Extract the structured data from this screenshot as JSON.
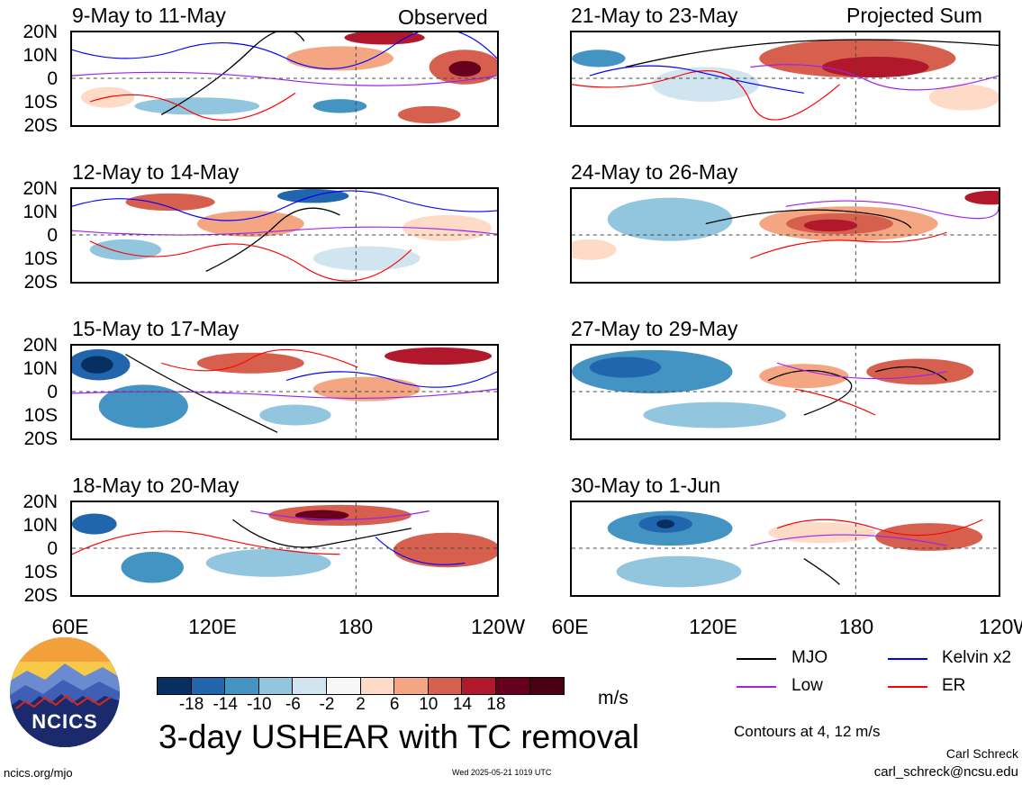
{
  "panels": [
    {
      "title": "9-May to 11-May",
      "tag": "Observed"
    },
    {
      "title": "12-May to 14-May",
      "tag": ""
    },
    {
      "title": "15-May to 17-May",
      "tag": ""
    },
    {
      "title": "18-May to 20-May",
      "tag": ""
    },
    {
      "title": "21-May to 23-May",
      "tag": "Projected Sum"
    },
    {
      "title": "24-May to 26-May",
      "tag": ""
    },
    {
      "title": "27-May to 29-May",
      "tag": ""
    },
    {
      "title": "30-May to 1-Jun",
      "tag": ""
    }
  ],
  "lat_labels": [
    "20N",
    "10N",
    "0",
    "10S",
    "20S"
  ],
  "lon_labels": [
    "60E",
    "120E",
    "180",
    "120W"
  ],
  "colorbar": {
    "colors": [
      "#053061",
      "#2166ac",
      "#4393c3",
      "#92c5de",
      "#d1e5f0",
      "#f7f7f7",
      "#fddbc7",
      "#f4a582",
      "#d6604d",
      "#b2182b",
      "#67001f",
      "#4d0013"
    ],
    "labels": [
      "-18",
      "-14",
      "-10",
      "-6",
      "-2",
      "2",
      "6",
      "10",
      "14",
      "18"
    ],
    "units": "m/s"
  },
  "title": "3-day USHEAR with TC removal",
  "legend": [
    {
      "label": "MJO",
      "color": "#000000"
    },
    {
      "label": "Kelvin x2",
      "color": "#0000ff"
    },
    {
      "label": "Low",
      "color": "#a020f0"
    },
    {
      "label": "ER",
      "color": "#ff0000"
    }
  ],
  "contour_note": "Contours at 4, 12 m/s",
  "credit_name": "Carl Schreck",
  "credit_email": "carl_schreck@ncsu.edu",
  "site": "ncics.org/mjo",
  "timestamp": "Wed 2025-05-21 1019 UTC",
  "logo_text": "NCICS"
}
